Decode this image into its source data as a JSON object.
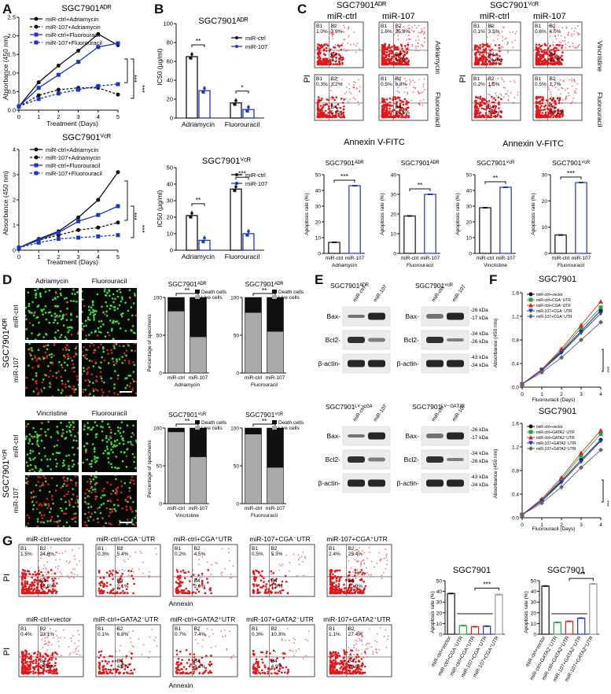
{
  "panel_labels": [
    "A",
    "B",
    "C",
    "D",
    "E",
    "F",
    "G"
  ],
  "colors": {
    "black": "#111111",
    "blue": "#1a33cc",
    "red": "#e02020",
    "green": "#1fa83a",
    "gray": "#999999"
  },
  "A": {
    "top_title": "SGC7901ᴬᴰᴿ",
    "bottom_title": "SGC7901ⱽᶜᴿ",
    "xlabel": "Treatment (Days)",
    "ylabel": "Absorbance (450 nm)",
    "legend": [
      "miR-ctrl+Adriamycin",
      "miR-107+Adriamycin",
      "miR-ctrl+Fluorouracil",
      "miR-107+Fluorouracil"
    ],
    "sig": [
      "***",
      "***"
    ]
  },
  "B": {
    "top_title": "SGC7901ᴬᴰᴿ",
    "bottom_title": "SGC7901ⱽᶜᴿ",
    "ylabel": "IC50 (μg/ml)",
    "legend": [
      "miR-ctrl",
      "miR-107"
    ],
    "categories": [
      "Adriamycin",
      "Fluorouracil"
    ],
    "top_sig": [
      "**",
      "*"
    ],
    "bottom_sig": [
      "**",
      "***"
    ]
  },
  "C": {
    "left_title": "SGC7901ᴬᴰᴿ",
    "right_title": "SGC7901ⱽᶜᴿ",
    "col_labels": [
      "miR-ctrl",
      "miR-107"
    ],
    "left_rows": [
      "Adriamycin",
      "Fluorouracil"
    ],
    "right_rows": [
      "Vincristine",
      "Fluorouracil"
    ],
    "ylabel": "PI",
    "xlabel": "Annexin V-FITC",
    "bar_titles": [
      "SGC7901ᴬᴰᴿ",
      "SGC7901ᴬᴰᴿ",
      "SGC7901ⱽᶜᴿ",
      "SGC7901ⱽᶜᴿ"
    ],
    "bar_xlabels": [
      "Adriamycin",
      "Fluorouracil",
      "Vincristine",
      "Fluorouracil"
    ],
    "bar_ylabel": "Apoptosis rate (%)",
    "bar_sig": [
      "***",
      "**",
      "**",
      "***"
    ],
    "bar_cats": [
      "miR-ctrl",
      "miR-107"
    ],
    "q_left": [
      [
        "1.0%",
        "3.9%",
        "3.1%"
      ],
      [
        "1.6%",
        "25.8%",
        "18.9%"
      ],
      [
        "0.3%",
        "3.2%",
        "5.6%"
      ],
      [
        "0.5%",
        "6.8%",
        "20.5%"
      ]
    ],
    "q_right": [
      [
        "0.1%",
        "3.5%",
        "26.6%"
      ],
      [
        "0.6%",
        "6.0%",
        "37.6%"
      ],
      [
        "0.2%",
        "1.5%",
        "5.2%"
      ],
      [
        "0.5%",
        "1.7%",
        "20.5%"
      ]
    ]
  },
  "D": {
    "top_row_labels": [
      "Adriamycin",
      "Fluorouracil"
    ],
    "bottom_row_labels": [
      "Vincristine",
      "Fluorouracil"
    ],
    "side_labels": [
      "miR-ctrl",
      "miR-107"
    ],
    "top_cell": "SGC7901ᴬᴰᴿ",
    "bottom_cell": "SGC7901ⱽᶜᴿ",
    "ylabel": "Percentage of specimens",
    "legend": [
      "Death cells",
      "Live cells"
    ],
    "titles": [
      "SGC7901ᴬᴰᴿ",
      "SGC7901ᴬᴰᴿ",
      "SGC7901ⱽᶜᴿ",
      "SGC7901ⱽᶜᴿ"
    ],
    "xlabels": [
      "Adriamycin",
      "Fluorouracil",
      "Vincristine",
      "Fluorouracil"
    ],
    "sig": [
      "**",
      "**",
      "**",
      "**"
    ],
    "cats": [
      "miR-ctrl",
      "miR-107"
    ]
  },
  "E": {
    "titles": [
      "SGC7901ᴬᴰᴿ",
      "SGC7901ⱽᶜᴿ",
      "SGC7901ᴸⱽ⁻ᶜᴳᴬ",
      "SGC7901ᴸⱽ⁻ᴳᴬᵀᴬ²"
    ],
    "lanes": [
      "miR-ctrl",
      "miR-107"
    ],
    "proteins": [
      "Bax-",
      "Bcl2-",
      "β-actin-"
    ],
    "kda": [
      "-26 kDa",
      "-17 kDa",
      "-34 kDa",
      "-26 kDa",
      "-43 kDa",
      "-34 kDa"
    ]
  },
  "F": {
    "title": "SGC7901",
    "xlabel": "Fluorouracil (Days)",
    "ylabel": "Absorbance (450 nm)",
    "legend_top": [
      "miR-ctrl+vector",
      "miR-ctrl+CGA⁻UTR",
      "miR-ctrl+CGA⁺UTR",
      "miR-107+CGA⁻UTR",
      "miR-107+CGA⁺UTR"
    ],
    "legend_bottom": [
      "miR-ctrl+vector",
      "miR-ctrl+GATA2⁻UTR",
      "miR-ctrl+GATA2⁺UTR",
      "miR-107+GATA2⁻UTR",
      "miR-107+GATA2⁺UTR"
    ],
    "sig": "***"
  },
  "G": {
    "top_labels": [
      "miR-ctrl+vector",
      "miR-ctrl+CGA⁻UTR",
      "miR-ctrl+CGA⁺UTR",
      "miR-107+CGA⁻UTR",
      "miR-107+CGA⁺UTR"
    ],
    "bottom_labels": [
      "miR-ctrl+vector",
      "miR-ctrl+GATA2⁻UTR",
      "miR-ctrl+GATA2⁺UTR",
      "miR-107+GATA2⁻UTR",
      "miR-107+GATA2⁺UTR"
    ],
    "top_q": [
      [
        "1.5%",
        "24.6%",
        "13.5%"
      ],
      [
        "0.3%",
        "5.4%",
        "2.1%"
      ],
      [
        "0.2%",
        "4.5%",
        "2.0%"
      ],
      [
        "0.5%",
        "5.3%",
        "1.8%"
      ],
      [
        "2.4%",
        "25.4%",
        "10.9%"
      ]
    ],
    "bottom_q": [
      [
        "0.4%",
        "23.1%",
        "24.8%"
      ],
      [
        "0.1%",
        "6.8%",
        "4.5%"
      ],
      [
        "0.7%",
        "7.4%",
        "4.4%"
      ],
      [
        "0.3%",
        "10.3%",
        "4.9%"
      ],
      [
        "1.1%",
        "27.4%",
        "20.6%"
      ]
    ],
    "ylabel": "PI",
    "xlabel": "Annexin",
    "bar_title": "SGC7901",
    "bar_ylabel": "Apoptosis rate (%)",
    "bar_sig": "***"
  },
  "chart_data": [
    {
      "id": "A-top",
      "type": "line",
      "title": "SGC7901ᴬᴰᴿ",
      "xlabel": "Treatment (Days)",
      "ylabel": "Absorbance (450 nm)",
      "x": [
        0,
        1,
        2,
        3,
        4,
        5
      ],
      "ylim": [
        0,
        2.5
      ],
      "series": [
        {
          "name": "miR-ctrl+Adriamycin",
          "values": [
            0.1,
            0.75,
            1.2,
            1.6,
            2.05,
            1.75
          ]
        },
        {
          "name": "miR-107+Adriamycin",
          "values": [
            0.1,
            0.4,
            0.55,
            0.6,
            0.6,
            0.42
          ]
        },
        {
          "name": "miR-ctrl+Fluorouracil",
          "values": [
            0.1,
            0.6,
            0.95,
            1.3,
            1.7,
            1.8
          ]
        },
        {
          "name": "miR-107+Fluorouracil",
          "values": [
            0.1,
            0.3,
            0.45,
            0.55,
            0.65,
            0.7
          ]
        }
      ]
    },
    {
      "id": "A-bottom",
      "type": "line",
      "title": "SGC7901ⱽᶜᴿ",
      "xlabel": "Treatment (Days)",
      "ylabel": "Absorbance (450 nm)",
      "x": [
        0,
        1,
        2,
        3,
        4,
        5
      ],
      "ylim": [
        0,
        4
      ],
      "series": [
        {
          "name": "miR-ctrl+Adriamycin",
          "values": [
            0.1,
            0.45,
            0.75,
            1.3,
            2.0,
            3.1
          ]
        },
        {
          "name": "miR-107+Adriamycin",
          "values": [
            0.1,
            0.4,
            0.6,
            0.8,
            0.9,
            1.1
          ]
        },
        {
          "name": "miR-ctrl+Fluorouracil",
          "values": [
            0.1,
            0.4,
            0.7,
            1.15,
            1.4,
            1.75
          ]
        },
        {
          "name": "miR-107+Fluorouracil",
          "values": [
            0.1,
            0.3,
            0.45,
            0.5,
            0.55,
            0.6
          ]
        }
      ]
    },
    {
      "id": "B-top",
      "type": "bar",
      "title": "SGC7901ᴬᴰᴿ",
      "ylabel": "IC50 (μg/ml)",
      "categories": [
        "Adriamycin",
        "Fluorouracil"
      ],
      "ylim": [
        0,
        100
      ],
      "series": [
        {
          "name": "miR-ctrl",
          "values": [
            65,
            16
          ]
        },
        {
          "name": "miR-107",
          "values": [
            29,
            9
          ]
        }
      ]
    },
    {
      "id": "B-bottom",
      "type": "bar",
      "title": "SGC7901ⱽᶜᴿ",
      "ylabel": "IC50 (μg/ml)",
      "categories": [
        "Adriamycin",
        "Fluorouracil"
      ],
      "ylim": [
        0,
        50
      ],
      "series": [
        {
          "name": "miR-ctrl",
          "values": [
            21,
            37
          ]
        },
        {
          "name": "miR-107",
          "values": [
            6,
            10
          ]
        }
      ]
    },
    {
      "id": "C-1",
      "type": "bar",
      "title": "SGC7901ᴬᴰᴿ",
      "xlabel": "Adriamycin",
      "ylabel": "Apoptosis rate (%)",
      "categories": [
        "miR-ctrl",
        "miR-107"
      ],
      "values": [
        7,
        43
      ],
      "ylim": [
        0,
        50
      ]
    },
    {
      "id": "C-2",
      "type": "bar",
      "title": "SGC7901ᴬᴰᴿ",
      "xlabel": "Fluorouracil",
      "ylabel": "Apoptosis rate (%)",
      "categories": [
        "miR-ctrl",
        "miR-107"
      ],
      "values": [
        19,
        30
      ],
      "ylim": [
        0,
        40
      ]
    },
    {
      "id": "C-3",
      "type": "bar",
      "title": "SGC7901ⱽᶜᴿ",
      "xlabel": "Vincristine",
      "ylabel": "Apoptosis rate (%)",
      "categories": [
        "miR-ctrl",
        "miR-107"
      ],
      "values": [
        29,
        42
      ],
      "ylim": [
        0,
        50
      ]
    },
    {
      "id": "C-4",
      "type": "bar",
      "title": "SGC7901ⱽᶜᴿ",
      "xlabel": "Fluorouracil",
      "ylabel": "Apoptosis rate (%)",
      "categories": [
        "miR-ctrl",
        "miR-107"
      ],
      "values": [
        7,
        27
      ],
      "ylim": [
        0,
        30
      ]
    },
    {
      "id": "D-1",
      "type": "bar",
      "title": "SGC7901ᴬᴰᴿ",
      "xlabel": "Adriamycin",
      "categories": [
        "miR-ctrl",
        "miR-107"
      ],
      "series": [
        {
          "name": "Live cells",
          "values": [
            82,
            48
          ]
        },
        {
          "name": "Death cells",
          "values": [
            18,
            52
          ]
        }
      ],
      "ylim": [
        0,
        100
      ]
    },
    {
      "id": "D-2",
      "type": "bar",
      "title": "SGC7901ᴬᴰᴿ",
      "xlabel": "Fluorouracil",
      "categories": [
        "miR-ctrl",
        "miR-107"
      ],
      "series": [
        {
          "name": "Live cells",
          "values": [
            80,
            55
          ]
        },
        {
          "name": "Death cells",
          "values": [
            20,
            45
          ]
        }
      ],
      "ylim": [
        0,
        100
      ]
    },
    {
      "id": "D-3",
      "type": "bar",
      "title": "SGC7901ⱽᶜᴿ",
      "xlabel": "Vincristine",
      "categories": [
        "miR-ctrl",
        "miR-107"
      ],
      "series": [
        {
          "name": "Live cells",
          "values": [
            95,
            62
          ]
        },
        {
          "name": "Death cells",
          "values": [
            5,
            38
          ]
        }
      ],
      "ylim": [
        0,
        100
      ]
    },
    {
      "id": "D-4",
      "type": "bar",
      "title": "SGC7901ⱽᶜᴿ",
      "xlabel": "Fluorouracil",
      "categories": [
        "miR-ctrl",
        "miR-107"
      ],
      "series": [
        {
          "name": "Live cells",
          "values": [
            92,
            48
          ]
        },
        {
          "name": "Death cells",
          "values": [
            8,
            52
          ]
        }
      ],
      "ylim": [
        0,
        100
      ]
    },
    {
      "id": "F-top",
      "type": "line",
      "title": "SGC7901",
      "xlabel": "Fluorouracil (Days)",
      "ylabel": "Absorbance (450 nm)",
      "x": [
        0,
        1,
        2,
        3,
        4
      ],
      "ylim": [
        0,
        1.6
      ],
      "series": [
        {
          "name": "miR-ctrl+vector",
          "values": [
            0.05,
            0.3,
            0.6,
            0.95,
            1.3
          ]
        },
        {
          "name": "miR-ctrl+CGA⁻UTR",
          "values": [
            0.05,
            0.3,
            0.62,
            1.0,
            1.35
          ]
        },
        {
          "name": "miR-ctrl+CGA⁺UTR",
          "values": [
            0.05,
            0.3,
            0.65,
            1.05,
            1.45
          ]
        },
        {
          "name": "miR-107+CGA⁻UTR",
          "values": [
            0.05,
            0.28,
            0.58,
            0.92,
            1.25
          ]
        },
        {
          "name": "miR-107+CGA⁺UTR",
          "values": [
            0.05,
            0.25,
            0.5,
            0.8,
            1.1
          ]
        }
      ]
    },
    {
      "id": "F-bottom",
      "type": "line",
      "title": "SGC7901",
      "xlabel": "Fluorouracil (Days)",
      "ylabel": "Absorbance (450 nm)",
      "x": [
        0,
        1,
        2,
        3,
        4
      ],
      "ylim": [
        0,
        1.6
      ],
      "series": [
        {
          "name": "miR-ctrl+vector",
          "values": [
            0.05,
            0.3,
            0.62,
            0.98,
            1.32
          ]
        },
        {
          "name": "miR-ctrl+GATA2⁻UTR",
          "values": [
            0.05,
            0.3,
            0.65,
            1.05,
            1.42
          ]
        },
        {
          "name": "miR-ctrl+GATA2⁺UTR",
          "values": [
            0.05,
            0.32,
            0.68,
            1.1,
            1.48
          ]
        },
        {
          "name": "miR-107+GATA2⁻UTR",
          "values": [
            0.05,
            0.28,
            0.6,
            0.95,
            1.3
          ]
        },
        {
          "name": "miR-107+GATA2⁺UTR",
          "values": [
            0.05,
            0.25,
            0.52,
            0.85,
            1.15
          ]
        }
      ]
    },
    {
      "id": "G-1",
      "type": "bar",
      "title": "SGC7901",
      "ylabel": "Apoptosis rate (%)",
      "categories": [
        "miR-ctrl+vector",
        "miR-ctrl+CGA⁻UTR",
        "miR-ctrl+CGA⁺UTR",
        "miR-107+CGA⁻UTR",
        "miR-107+CGA⁺UTR"
      ],
      "values": [
        38,
        8,
        7,
        7.5,
        37
      ],
      "ylim": [
        0,
        50
      ]
    },
    {
      "id": "G-2",
      "type": "bar",
      "title": "SGC7901",
      "ylabel": "Apoptosis rate (%)",
      "categories": [
        "miR-ctrl+vector",
        "miR-ctrl+GATA2⁻UTR",
        "miR-ctrl+GATA2⁺UTR",
        "miR-107+GATA2⁻UTR",
        "miR-107+GATA2⁺UTR"
      ],
      "values": [
        45,
        11,
        12,
        15,
        47
      ],
      "ylim": [
        0,
        50
      ]
    }
  ]
}
